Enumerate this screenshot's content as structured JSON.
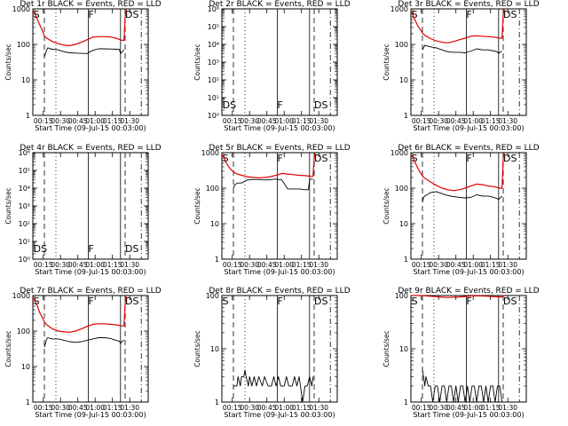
{
  "page": {
    "background": "#ffffff"
  },
  "colors": {
    "events": "#000000",
    "lld": "#e00000",
    "axes": "#000000"
  },
  "shared": {
    "xlabel": "Start Time (09-Jul-15 00:03:00)",
    "ylabel": "Counts/sec",
    "xticks": [
      "00:15",
      "00:30",
      "00:45",
      "01:00",
      "01:15",
      "01:30"
    ],
    "xlim_min": [
      3,
      103
    ],
    "markers": [
      {
        "label": "",
        "t_min": 13,
        "style": "dashed"
      },
      {
        "label": "",
        "t_min": 23,
        "style": "dotted"
      },
      {
        "label": "F",
        "t_min": 51,
        "style": "solid"
      },
      {
        "label": "",
        "t_min": 79,
        "style": "solid"
      },
      {
        "label": "S",
        "t_min": 3.5,
        "style": "none"
      },
      {
        "label": "DS",
        "t_min": 83,
        "style": "dashed"
      },
      {
        "label": "",
        "t_min": 97,
        "style": "dashdot"
      }
    ]
  },
  "chart_data": [
    {
      "type": "line",
      "title": "Det 1r BLACK = Events, RED = LLD",
      "yscale": "log",
      "ylim": [
        1,
        1000
      ],
      "ytick_labels": [
        "1",
        "10",
        "100",
        "1000"
      ],
      "series": [
        {
          "name": "Events",
          "color": "#000000",
          "x": [
            13,
            14,
            15,
            16,
            17,
            18,
            20,
            25,
            30,
            35,
            40,
            45,
            50,
            55,
            60,
            65,
            70,
            75,
            78,
            79,
            80,
            81,
            82
          ],
          "y": [
            45,
            55,
            70,
            80,
            78,
            75,
            73,
            70,
            62,
            58,
            57,
            56,
            55,
            68,
            75,
            75,
            74,
            73,
            72,
            55,
            60,
            65,
            70
          ]
        },
        {
          "name": "LLD",
          "color": "#e00000",
          "x": [
            3,
            5,
            7,
            9,
            11,
            13,
            15,
            20,
            25,
            30,
            35,
            40,
            45,
            50,
            55,
            60,
            65,
            70,
            75,
            80,
            82,
            83,
            84
          ],
          "y": [
            900,
            700,
            500,
            350,
            260,
            170,
            150,
            120,
            105,
            95,
            92,
            100,
            115,
            135,
            160,
            165,
            165,
            162,
            150,
            130,
            130,
            600,
            950
          ]
        }
      ],
      "markers": [
        "S",
        "F",
        "DS"
      ]
    },
    {
      "type": "line",
      "title": "Det 2r BLACK = Events, RED = LLD",
      "yscale": "log",
      "ylim": [
        1,
        1000000
      ],
      "ytick_labels": [
        "10⁰",
        "10¹",
        "10²",
        "10³",
        "10⁴",
        "10⁵",
        "10⁶"
      ],
      "series": [],
      "markers": [
        "DS",
        "F",
        "DS"
      ]
    },
    {
      "type": "line",
      "title": "Det 3r BLACK = Events, RED = LLD",
      "yscale": "log",
      "ylim": [
        1,
        1000
      ],
      "ytick_labels": [
        "1",
        "10",
        "100",
        "1000"
      ],
      "series": [
        {
          "name": "Events",
          "color": "#000000",
          "x": [
            13,
            14,
            15,
            17,
            20,
            25,
            30,
            35,
            40,
            45,
            50,
            55,
            60,
            65,
            70,
            75,
            78,
            79,
            80,
            82
          ],
          "y": [
            70,
            80,
            95,
            90,
            85,
            80,
            70,
            62,
            60,
            60,
            58,
            65,
            75,
            70,
            70,
            65,
            62,
            55,
            60,
            65
          ]
        },
        {
          "name": "LLD",
          "color": "#e00000",
          "x": [
            3,
            5,
            7,
            9,
            11,
            13,
            15,
            20,
            25,
            30,
            35,
            40,
            45,
            50,
            55,
            60,
            65,
            70,
            75,
            80,
            82,
            83,
            84
          ],
          "y": [
            900,
            650,
            450,
            330,
            270,
            210,
            180,
            145,
            125,
            115,
            110,
            120,
            135,
            150,
            170,
            175,
            170,
            165,
            160,
            150,
            150,
            700,
            950
          ]
        }
      ],
      "markers": [
        "S",
        "F",
        "DS"
      ]
    },
    {
      "type": "line",
      "title": "Det 4r BLACK = Events, RED = LLD",
      "yscale": "log",
      "ylim": [
        1,
        1000000
      ],
      "ytick_labels": [
        "10⁰",
        "10¹",
        "10²",
        "10³",
        "10⁴",
        "10⁵",
        "10⁶"
      ],
      "series": [],
      "markers": [
        "DS",
        "F",
        "DS"
      ]
    },
    {
      "type": "line",
      "title": "Det 5r BLACK = Events, RED = LLD",
      "yscale": "log",
      "ylim": [
        1,
        1000
      ],
      "ytick_labels": [
        "1",
        "10",
        "100",
        "1000"
      ],
      "series": [
        {
          "name": "Events",
          "color": "#000000",
          "x": [
            13,
            14,
            15,
            17,
            20,
            25,
            30,
            35,
            40,
            45,
            50,
            55,
            60,
            65,
            70,
            75,
            78,
            79,
            80,
            82
          ],
          "y": [
            100,
            120,
            130,
            140,
            140,
            170,
            175,
            175,
            170,
            175,
            180,
            170,
            95,
            95,
            95,
            90,
            90,
            170,
            180,
            180
          ]
        },
        {
          "name": "LLD",
          "color": "#e00000",
          "x": [
            3,
            5,
            7,
            9,
            11,
            13,
            15,
            20,
            25,
            30,
            35,
            40,
            45,
            50,
            55,
            60,
            65,
            70,
            75,
            80,
            82,
            83,
            84
          ],
          "y": [
            900,
            700,
            500,
            400,
            330,
            290,
            260,
            230,
            210,
            200,
            195,
            200,
            210,
            230,
            260,
            250,
            240,
            230,
            225,
            215,
            215,
            700,
            950
          ]
        }
      ],
      "markers": [
        "S",
        "F",
        "DS"
      ]
    },
    {
      "type": "line",
      "title": "Det 6r BLACK = Events, RED = LLD",
      "yscale": "log",
      "ylim": [
        1,
        1000
      ],
      "ytick_labels": [
        "1",
        "10",
        "100",
        "1000"
      ],
      "series": [
        {
          "name": "Events",
          "color": "#000000",
          "x": [
            13,
            14,
            15,
            17,
            20,
            25,
            30,
            35,
            40,
            45,
            50,
            55,
            60,
            65,
            70,
            75,
            78,
            79,
            80,
            82
          ],
          "y": [
            40,
            55,
            60,
            65,
            75,
            80,
            70,
            62,
            58,
            55,
            53,
            55,
            65,
            60,
            60,
            55,
            50,
            48,
            52,
            60
          ]
        },
        {
          "name": "LLD",
          "color": "#e00000",
          "x": [
            3,
            5,
            7,
            9,
            11,
            13,
            15,
            20,
            25,
            30,
            35,
            40,
            45,
            50,
            55,
            60,
            65,
            70,
            75,
            80,
            82,
            83,
            84
          ],
          "y": [
            900,
            700,
            500,
            360,
            280,
            220,
            190,
            150,
            120,
            100,
            90,
            85,
            90,
            100,
            115,
            130,
            125,
            115,
            110,
            100,
            100,
            700,
            950
          ]
        }
      ],
      "markers": [
        "S",
        "F",
        "DS"
      ]
    },
    {
      "type": "line",
      "title": "Det 7r BLACK = Events, RED = LLD",
      "yscale": "log",
      "ylim": [
        1,
        1000
      ],
      "ytick_labels": [
        "1",
        "10",
        "100",
        "1000"
      ],
      "series": [
        {
          "name": "Events",
          "color": "#000000",
          "x": [
            13,
            14,
            15,
            16,
            18,
            20,
            25,
            30,
            35,
            40,
            45,
            50,
            55,
            60,
            65,
            70,
            75,
            78,
            79,
            80,
            82
          ],
          "y": [
            35,
            45,
            60,
            65,
            62,
            60,
            60,
            55,
            50,
            48,
            50,
            55,
            60,
            65,
            65,
            62,
            55,
            52,
            45,
            50,
            55
          ]
        },
        {
          "name": "LLD",
          "color": "#e00000",
          "x": [
            3,
            5,
            7,
            9,
            11,
            13,
            15,
            20,
            25,
            30,
            35,
            40,
            45,
            50,
            55,
            60,
            65,
            70,
            75,
            80,
            82,
            83,
            84
          ],
          "y": [
            900,
            700,
            500,
            330,
            250,
            180,
            150,
            115,
            100,
            95,
            92,
            100,
            115,
            135,
            155,
            160,
            160,
            155,
            150,
            140,
            140,
            600,
            950
          ]
        }
      ],
      "markers": [
        "S",
        "F",
        "DS"
      ]
    },
    {
      "type": "line",
      "title": "Det 8r BLACK = Events, RED = LLD",
      "yscale": "log",
      "ylim": [
        1,
        100
      ],
      "ytick_labels": [
        "1",
        "10",
        "100"
      ],
      "series": [
        {
          "name": "Events",
          "color": "#000000",
          "x": [
            13,
            16,
            17,
            19,
            20,
            22,
            23,
            24,
            26,
            27,
            29,
            31,
            33,
            35,
            38,
            40,
            43,
            46,
            48,
            50,
            52,
            54,
            57,
            59,
            61,
            64,
            66,
            68,
            70,
            73,
            75,
            77,
            79,
            81,
            82
          ],
          "y": [
            2,
            2,
            3,
            2,
            3,
            3,
            4,
            3,
            2,
            3,
            2,
            3,
            2,
            3,
            2,
            3,
            2,
            2,
            3,
            2,
            3,
            2,
            2,
            3,
            2,
            2,
            3,
            2,
            3,
            1,
            2,
            2,
            3,
            2,
            3
          ]
        }
      ],
      "markers": [
        "S",
        "F",
        "DS"
      ]
    },
    {
      "type": "line",
      "title": "Det 9r BLACK = Events, RED = LLD",
      "yscale": "log",
      "ylim": [
        1,
        100
      ],
      "ytick_labels": [
        "1",
        "10",
        "100"
      ],
      "series": [
        {
          "name": "Events",
          "color": "#000000",
          "x": [
            13,
            14,
            15,
            16,
            18,
            20,
            22,
            24,
            26,
            28,
            30,
            32,
            34,
            36,
            38,
            40,
            42,
            44,
            46,
            48,
            50,
            52,
            54,
            56,
            58,
            60,
            62,
            64,
            66,
            68,
            70,
            72,
            74,
            76,
            78,
            80,
            82
          ],
          "y": [
            4,
            3,
            2,
            3,
            2,
            2,
            1,
            2,
            2,
            1,
            2,
            2,
            1,
            2,
            2,
            1,
            2,
            1,
            2,
            2,
            1,
            2,
            1,
            2,
            2,
            1,
            2,
            2,
            1,
            2,
            1,
            2,
            2,
            1,
            2,
            2,
            1
          ]
        },
        {
          "name": "LLD",
          "color": "#e00000",
          "x": [
            3,
            5,
            7,
            9,
            11,
            13,
            15,
            20,
            25,
            30,
            35,
            40,
            45,
            50,
            55,
            60,
            65,
            70,
            75,
            80,
            82,
            83,
            84
          ],
          "y": [
            100,
            100,
            100,
            100,
            100,
            100,
            99,
            97,
            95,
            93,
            92,
            93,
            94,
            96,
            98,
            99,
            98,
            97,
            95,
            94,
            94,
            100,
            100
          ]
        }
      ],
      "markers": [
        "S",
        "F",
        "DS"
      ]
    }
  ]
}
